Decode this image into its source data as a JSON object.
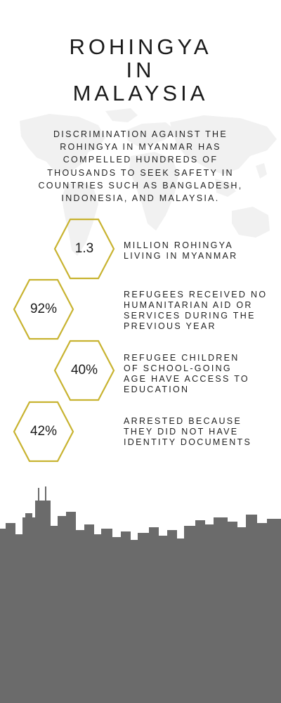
{
  "title_lines": [
    "ROHINGYA",
    "IN",
    "MALAYSIA"
  ],
  "intro": "DISCRIMINATION AGAINST THE ROHINGYA IN MYANMAR HAS COMPELLED HUNDREDS OF THOUSANDS TO SEEK SAFETY IN COUNTRIES SUCH AS BANGLADESH, INDONESIA, AND MALAYSIA.",
  "stats": [
    {
      "value": "1.3",
      "lines": [
        "MILLION ROHINGYA",
        "LIVING IN MYANMAR"
      ]
    },
    {
      "value": "92%",
      "lines": [
        "REFUGEES RECEIVED NO",
        "HUMANITARIAN AID OR",
        "SERVICES DURING THE",
        "PREVIOUS YEAR"
      ]
    },
    {
      "value": "40%",
      "lines": [
        "REFUGEE CHILDREN",
        "OF SCHOOL-GOING",
        "AGE HAVE ACCESS TO",
        "EDUCATION"
      ]
    },
    {
      "value": "42%",
      "lines": [
        "ARRESTED BECAUSE",
        "THEY DID NOT HAVE",
        "IDENTITY DOCUMENTS"
      ]
    }
  ],
  "colors": {
    "hex_outline": "#c8b330",
    "skyline": "#6b6b6b",
    "map": "#f1f1f1",
    "text": "#222222"
  },
  "icons": {
    "background": "world-map-icon",
    "footer": "city-skyline-icon"
  }
}
